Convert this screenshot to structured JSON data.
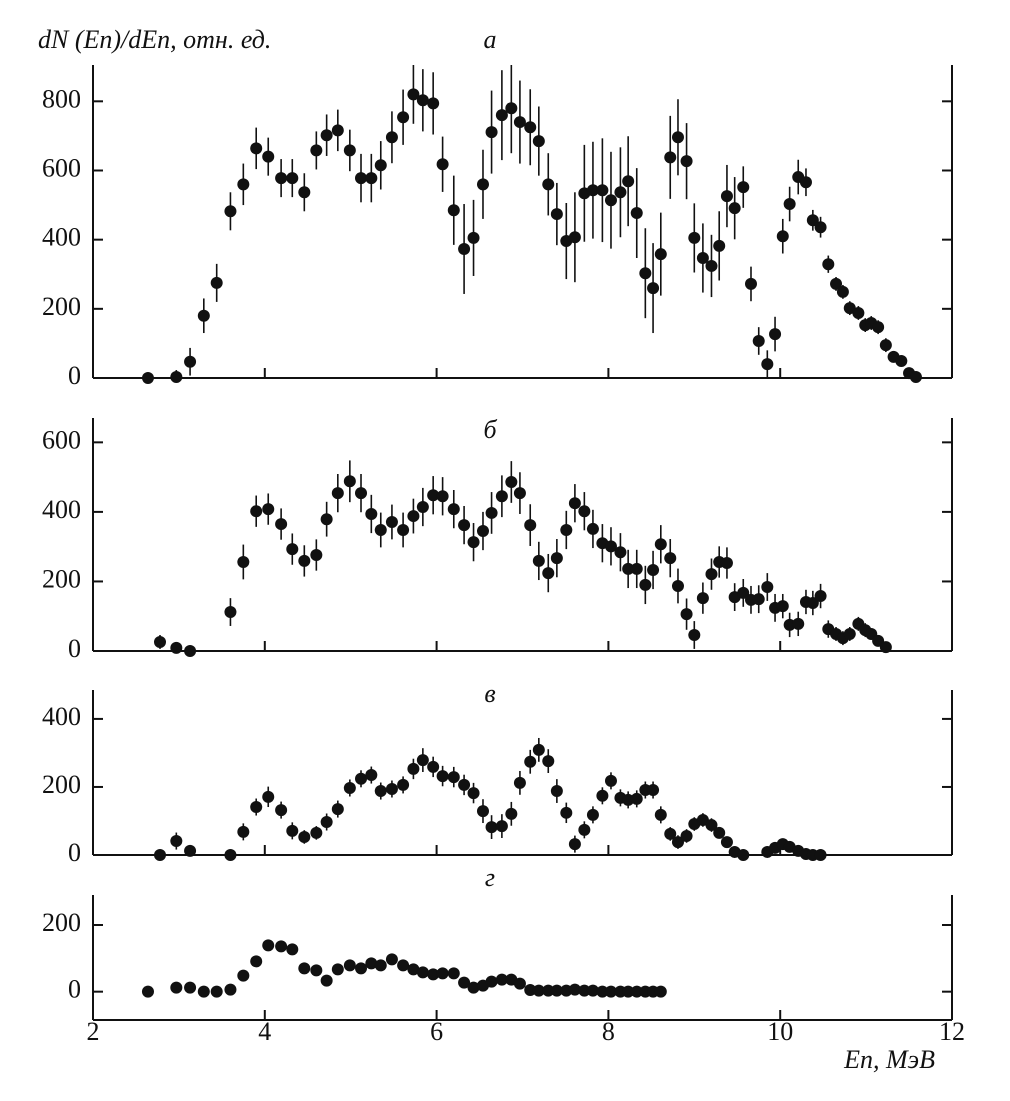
{
  "chart_data": [
    {
      "type": "scatter",
      "label": "a",
      "ylabel": "dN (En)/dEn, отн. ед.",
      "xlim": [
        2,
        12
      ],
      "ylim": [
        0,
        905
      ],
      "yticks": [
        0,
        200,
        400,
        600,
        800
      ],
      "x": [
        2.64,
        2.97,
        3.13,
        3.29,
        3.44,
        3.6,
        3.75,
        3.9,
        4.04,
        4.19,
        4.32,
        4.46,
        4.6,
        4.72,
        4.85,
        4.99,
        5.12,
        5.24,
        5.35,
        5.48,
        5.61,
        5.73,
        5.84,
        5.96,
        6.07,
        6.2,
        6.32,
        6.43,
        6.54,
        6.64,
        6.76,
        6.87,
        6.97,
        7.09,
        7.19,
        7.3,
        7.4,
        7.51,
        7.61,
        7.72,
        7.82,
        7.93,
        8.03,
        8.14,
        8.23,
        8.33,
        8.43,
        8.52,
        8.61,
        8.72,
        8.81,
        8.91,
        9.0,
        9.1,
        9.2,
        9.29,
        9.38,
        9.47,
        9.57,
        9.66,
        9.75,
        9.85,
        9.94,
        10.03,
        10.11,
        10.21,
        10.3,
        10.38,
        10.47,
        10.56,
        10.65,
        10.73,
        10.81,
        10.91,
        10.99,
        11.06,
        11.14,
        11.23,
        11.32,
        11.41,
        11.5,
        11.58
      ],
      "values": [
        0,
        3,
        47,
        180,
        275,
        482,
        560,
        664,
        640,
        578,
        578,
        537,
        658,
        702,
        716,
        658,
        578,
        578,
        615,
        696,
        754,
        820,
        803,
        794,
        618,
        485,
        373,
        405,
        560,
        711,
        760,
        780,
        740,
        725,
        685,
        560,
        474,
        396,
        407,
        534,
        543,
        543,
        514,
        537,
        569,
        477,
        303,
        260,
        358,
        638,
        696,
        627,
        405,
        347,
        324,
        382,
        526,
        491,
        552,
        272,
        107,
        40,
        127,
        410,
        503,
        581,
        566,
        456,
        436,
        329,
        272,
        249,
        202,
        188,
        153,
        159,
        147,
        95,
        61,
        49,
        14,
        3
      ],
      "errors": [
        5,
        20,
        40,
        50,
        55,
        55,
        60,
        60,
        55,
        55,
        55,
        55,
        55,
        60,
        60,
        60,
        70,
        70,
        70,
        75,
        80,
        85,
        90,
        90,
        80,
        100,
        130,
        110,
        100,
        120,
        130,
        130,
        120,
        110,
        100,
        90,
        90,
        110,
        130,
        140,
        140,
        150,
        140,
        130,
        130,
        130,
        130,
        130,
        120,
        120,
        110,
        110,
        100,
        100,
        90,
        100,
        90,
        90,
        60,
        50,
        40,
        40,
        50,
        50,
        50,
        50,
        40,
        30,
        30,
        25,
        20,
        20,
        20,
        20,
        20,
        20,
        20,
        20,
        15,
        15,
        10,
        5
      ]
    },
    {
      "type": "scatter",
      "label": "б",
      "xlim": [
        2,
        12
      ],
      "ylim": [
        0,
        670
      ],
      "yticks": [
        0,
        200,
        400,
        600
      ],
      "x": [
        2.78,
        2.97,
        3.13,
        3.6,
        3.75,
        3.9,
        4.04,
        4.19,
        4.32,
        4.46,
        4.6,
        4.72,
        4.85,
        4.99,
        5.12,
        5.24,
        5.35,
        5.48,
        5.61,
        5.73,
        5.84,
        5.96,
        6.07,
        6.2,
        6.32,
        6.43,
        6.54,
        6.64,
        6.76,
        6.87,
        6.97,
        7.09,
        7.19,
        7.3,
        7.4,
        7.51,
        7.61,
        7.72,
        7.82,
        7.93,
        8.03,
        8.14,
        8.23,
        8.33,
        8.43,
        8.52,
        8.61,
        8.72,
        8.81,
        8.91,
        9.0,
        9.1,
        9.2,
        9.29,
        9.38,
        9.47,
        9.57,
        9.66,
        9.75,
        9.85,
        9.94,
        10.03,
        10.11,
        10.21,
        10.3,
        10.38,
        10.47,
        10.56,
        10.65,
        10.73,
        10.81,
        10.91,
        10.99,
        11.06,
        11.14,
        11.23
      ],
      "values": [
        26,
        9,
        0,
        112,
        256,
        402,
        408,
        365,
        293,
        259,
        276,
        379,
        454,
        488,
        454,
        394,
        348,
        371,
        348,
        388,
        414,
        448,
        445,
        408,
        362,
        313,
        345,
        397,
        445,
        486,
        454,
        362,
        259,
        224,
        267,
        348,
        425,
        402,
        351,
        310,
        301,
        284,
        236,
        236,
        190,
        233,
        307,
        267,
        187,
        106,
        46,
        152,
        221,
        256,
        253,
        155,
        167,
        147,
        149,
        184,
        124,
        129,
        75,
        78,
        141,
        138,
        158,
        63,
        49,
        37,
        49,
        78,
        60,
        49,
        29,
        11
      ],
      "errors": [
        20,
        10,
        5,
        40,
        50,
        45,
        45,
        45,
        45,
        45,
        45,
        50,
        55,
        60,
        55,
        55,
        50,
        50,
        50,
        50,
        55,
        55,
        55,
        55,
        55,
        55,
        55,
        60,
        60,
        60,
        60,
        60,
        55,
        55,
        55,
        55,
        55,
        55,
        55,
        55,
        55,
        55,
        55,
        55,
        55,
        55,
        55,
        55,
        50,
        45,
        40,
        45,
        45,
        45,
        45,
        40,
        40,
        40,
        40,
        40,
        40,
        35,
        35,
        35,
        35,
        35,
        35,
        25,
        20,
        20,
        20,
        20,
        20,
        15,
        10,
        5
      ]
    },
    {
      "type": "scatter",
      "label": "в",
      "xlim": [
        2,
        12
      ],
      "ylim": [
        0,
        485
      ],
      "yticks": [
        0,
        200,
        400
      ],
      "x": [
        2.78,
        2.97,
        3.13,
        3.6,
        3.75,
        3.9,
        4.04,
        4.19,
        4.32,
        4.46,
        4.6,
        4.72,
        4.85,
        4.99,
        5.12,
        5.24,
        5.35,
        5.48,
        5.61,
        5.73,
        5.84,
        5.96,
        6.07,
        6.2,
        6.32,
        6.43,
        6.54,
        6.64,
        6.76,
        6.87,
        6.97,
        7.09,
        7.19,
        7.3,
        7.4,
        7.51,
        7.61,
        7.72,
        7.82,
        7.93,
        8.03,
        8.14,
        8.23,
        8.33,
        8.43,
        8.52,
        8.61,
        8.72,
        8.81,
        8.91,
        9.0,
        9.1,
        9.2,
        9.29,
        9.38,
        9.47,
        9.57,
        9.85,
        9.94,
        10.03,
        10.11,
        10.21,
        10.3,
        10.38,
        10.47
      ],
      "values": [
        0,
        41,
        12,
        0,
        68,
        141,
        171,
        132,
        71,
        53,
        65,
        97,
        135,
        197,
        224,
        235,
        188,
        194,
        206,
        253,
        279,
        259,
        232,
        229,
        206,
        182,
        129,
        82,
        85,
        121,
        212,
        274,
        309,
        276,
        188,
        124,
        32,
        74,
        118,
        174,
        218,
        168,
        162,
        165,
        191,
        191,
        118,
        62,
        38,
        56,
        91,
        103,
        88,
        65,
        38,
        9,
        0,
        9,
        21,
        32,
        24,
        12,
        3,
        0,
        0
      ],
      "errors": [
        5,
        25,
        15,
        5,
        25,
        25,
        30,
        25,
        25,
        20,
        20,
        25,
        25,
        25,
        25,
        25,
        25,
        25,
        25,
        30,
        35,
        30,
        30,
        30,
        30,
        30,
        35,
        35,
        35,
        35,
        35,
        35,
        35,
        35,
        35,
        30,
        25,
        25,
        25,
        25,
        25,
        25,
        25,
        25,
        25,
        25,
        25,
        20,
        20,
        20,
        20,
        20,
        20,
        15,
        15,
        10,
        5,
        10,
        10,
        10,
        10,
        10,
        5,
        5,
        5
      ]
    },
    {
      "type": "scatter",
      "label": "г",
      "xlabel": "En, МэВ",
      "xlim": [
        2,
        12
      ],
      "xticks": [
        2,
        4,
        6,
        8,
        10,
        12
      ],
      "ylim": [
        -85,
        290
      ],
      "yticks": [
        0,
        200
      ],
      "x": [
        2.64,
        2.97,
        3.13,
        3.29,
        3.44,
        3.6,
        3.75,
        3.9,
        4.04,
        4.19,
        4.32,
        4.46,
        4.6,
        4.72,
        4.85,
        4.99,
        5.12,
        5.24,
        5.35,
        5.48,
        5.61,
        5.73,
        5.84,
        5.96,
        6.07,
        6.2,
        6.32,
        6.43,
        6.54,
        6.64,
        6.76,
        6.87,
        6.97,
        7.09,
        7.19,
        7.3,
        7.4,
        7.51,
        7.61,
        7.72,
        7.82,
        7.93,
        8.03,
        8.14,
        8.23,
        8.33,
        8.43,
        8.52,
        8.61
      ],
      "values": [
        0,
        12,
        12,
        0,
        0,
        6,
        48,
        91,
        139,
        136,
        127,
        70,
        64,
        33,
        67,
        79,
        70,
        85,
        79,
        97,
        79,
        67,
        58,
        52,
        55,
        55,
        27,
        12,
        18,
        30,
        36,
        36,
        24,
        5,
        3,
        3,
        3,
        3,
        6,
        3,
        3,
        0,
        0,
        0,
        0,
        0,
        0,
        0,
        0
      ]
    }
  ]
}
